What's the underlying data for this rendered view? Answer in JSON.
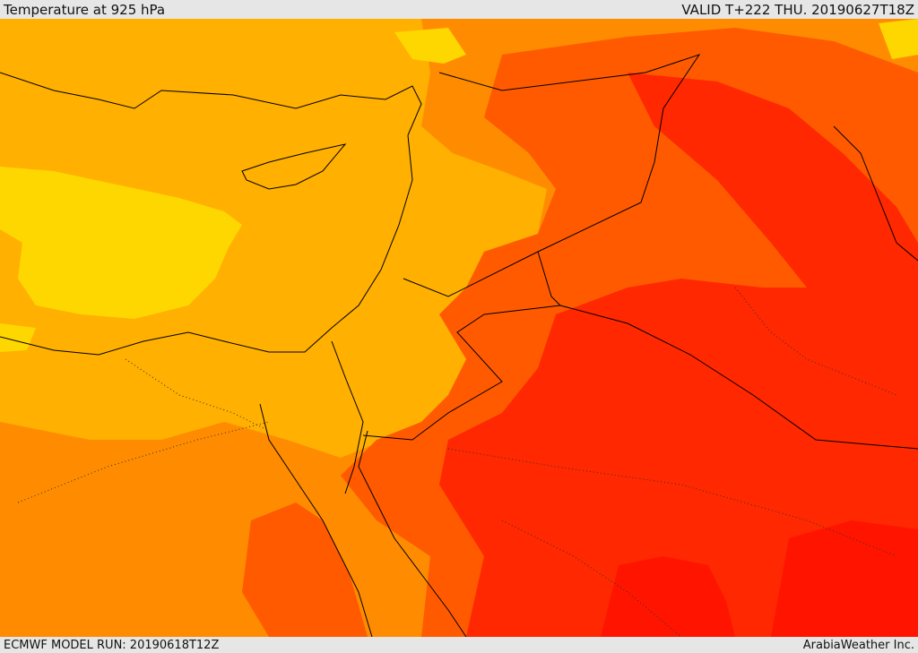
{
  "header": {
    "title": "Temperature at 925 hPa",
    "valid": "VALID T+222 THU. 20190627T18Z"
  },
  "footer": {
    "model_run": "ECMWF MODEL RUN: 20190618T12Z",
    "credit": "ArabiaWeather Inc."
  },
  "palette": {
    "band_1": "#ffd700",
    "band_2": "#ffb000",
    "band_3": "#ff8c00",
    "band_4": "#ff5a00",
    "band_5": "#ff2800",
    "band_6": "#ff1400",
    "coastline": "#000000"
  }
}
